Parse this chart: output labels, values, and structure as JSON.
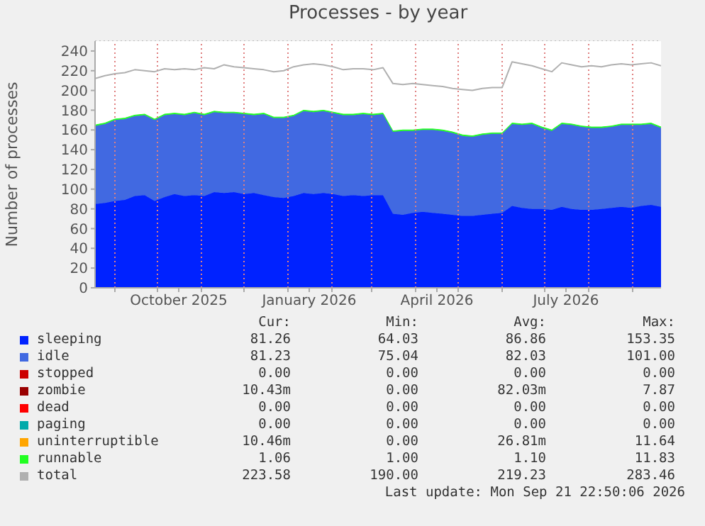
{
  "chart_data": {
    "type": "area",
    "title": "Processes - by year",
    "ylabel": "Number of processes",
    "stacked": true,
    "grid": true,
    "legend": "bottom",
    "x": [
      "2025-08-18",
      "2025-08-25",
      "2025-09-01",
      "2025-09-08",
      "2025-09-15",
      "2025-09-22",
      "2025-09-29",
      "2025-10-06",
      "2025-10-13",
      "2025-10-20",
      "2025-10-27",
      "2025-11-03",
      "2025-11-10",
      "2025-11-17",
      "2025-11-24",
      "2025-12-01",
      "2025-12-08",
      "2025-12-15",
      "2025-12-22",
      "2025-12-29",
      "2026-01-05",
      "2026-01-12",
      "2026-01-19",
      "2026-01-26",
      "2026-02-02",
      "2026-02-09",
      "2026-02-16",
      "2026-02-23",
      "2026-03-02",
      "2026-03-09",
      "2026-03-16",
      "2026-03-23",
      "2026-03-30",
      "2026-04-06",
      "2026-04-13",
      "2026-04-20",
      "2026-04-27",
      "2026-05-04",
      "2026-05-11",
      "2026-05-18",
      "2026-05-25",
      "2026-06-01",
      "2026-06-08",
      "2026-06-15",
      "2026-06-22",
      "2026-06-29",
      "2026-07-06",
      "2026-07-13",
      "2026-07-20",
      "2026-07-27",
      "2026-08-03",
      "2026-08-10",
      "2026-08-17",
      "2026-08-24",
      "2026-08-31",
      "2026-09-07",
      "2026-09-14",
      "2026-09-21"
    ],
    "xlim": [
      "2025-08-18",
      "2026-09-21"
    ],
    "xticks": [
      {
        "value": "2025-09-01",
        "label": null
      },
      {
        "value": "2025-10-01",
        "label": null
      },
      {
        "value": "2025-10-16",
        "label": "October 2025"
      },
      {
        "value": "2025-11-01",
        "label": null
      },
      {
        "value": "2025-12-01",
        "label": null
      },
      {
        "value": "2026-01-01",
        "label": null
      },
      {
        "value": "2026-01-16",
        "label": "January 2026"
      },
      {
        "value": "2026-02-01",
        "label": null
      },
      {
        "value": "2026-03-01",
        "label": null
      },
      {
        "value": "2026-04-01",
        "label": null
      },
      {
        "value": "2026-04-16",
        "label": "April 2026"
      },
      {
        "value": "2026-05-01",
        "label": null
      },
      {
        "value": "2026-06-01",
        "label": null
      },
      {
        "value": "2026-07-01",
        "label": null
      },
      {
        "value": "2026-07-16",
        "label": "July 2026"
      },
      {
        "value": "2026-08-01",
        "label": null
      },
      {
        "value": "2026-09-01",
        "label": null
      }
    ],
    "ylim": [
      0,
      250
    ],
    "yticks": [
      0,
      20,
      40,
      60,
      80,
      100,
      120,
      140,
      160,
      180,
      200,
      220,
      240
    ],
    "series": [
      {
        "name": "sleeping",
        "color": "#0022ff",
        "values": [
          85,
          86,
          88,
          89,
          93,
          94,
          88,
          92,
          95,
          93,
          94,
          93,
          97,
          96,
          97,
          95,
          96,
          94,
          92,
          91,
          93,
          96,
          95,
          96,
          95,
          93,
          94,
          93,
          94,
          94,
          75,
          74,
          76,
          77,
          76,
          75,
          74,
          73,
          73,
          74,
          75,
          76,
          83,
          81,
          80,
          80,
          79,
          82,
          80,
          79,
          79,
          80,
          81,
          82,
          81,
          83,
          84,
          82
        ]
      },
      {
        "name": "idle",
        "color": "#4169e1",
        "values": [
          79,
          80,
          82,
          82,
          81,
          81,
          82,
          83,
          81,
          82,
          83,
          82,
          81,
          81,
          80,
          81,
          79,
          82,
          80,
          81,
          81,
          83,
          83,
          83,
          82,
          82,
          81,
          83,
          81,
          82,
          83,
          85,
          83,
          83,
          84,
          84,
          83,
          81,
          80,
          81,
          81,
          80,
          83,
          84,
          86,
          82,
          80,
          84,
          85,
          84,
          83,
          82,
          82,
          83,
          84,
          82,
          82,
          80
        ]
      },
      {
        "name": "stopped",
        "color": "#cc0000",
        "values": [
          null,
          null,
          null,
          null,
          null,
          null,
          null,
          null,
          null,
          null,
          null,
          null,
          null,
          null,
          null,
          null,
          null,
          null,
          null,
          null,
          null,
          null,
          null,
          null,
          null,
          null,
          null,
          null,
          null,
          null,
          null,
          null,
          null,
          null,
          null,
          null,
          null,
          null,
          null,
          null,
          null,
          null,
          null,
          null,
          null,
          null,
          null,
          null,
          null,
          null,
          null,
          null,
          null,
          null,
          null,
          null,
          null,
          null
        ]
      },
      {
        "name": "zombie",
        "color": "#990000",
        "values": [
          null,
          null,
          null,
          null,
          null,
          null,
          null,
          null,
          null,
          null,
          null,
          null,
          null,
          null,
          null,
          null,
          null,
          null,
          null,
          null,
          null,
          null,
          null,
          null,
          null,
          null,
          null,
          null,
          null,
          null,
          null,
          null,
          null,
          null,
          null,
          null,
          null,
          null,
          null,
          null,
          null,
          null,
          null,
          null,
          null,
          null,
          null,
          null,
          null,
          null,
          null,
          null,
          null,
          null,
          null,
          null,
          null,
          null
        ]
      },
      {
        "name": "dead",
        "color": "#ff0000",
        "values": [
          null,
          null,
          null,
          null,
          null,
          null,
          null,
          null,
          null,
          null,
          null,
          null,
          null,
          null,
          null,
          null,
          null,
          null,
          null,
          null,
          null,
          null,
          null,
          null,
          null,
          null,
          null,
          null,
          null,
          null,
          null,
          null,
          null,
          null,
          null,
          null,
          null,
          null,
          null,
          null,
          null,
          null,
          null,
          null,
          null,
          null,
          null,
          null,
          null,
          null,
          null,
          null,
          null,
          null,
          null,
          null,
          null,
          null
        ]
      },
      {
        "name": "paging",
        "color": "#00aaaa",
        "values": [
          null,
          null,
          null,
          null,
          null,
          null,
          null,
          null,
          null,
          null,
          null,
          null,
          null,
          null,
          null,
          null,
          null,
          null,
          null,
          null,
          null,
          null,
          null,
          null,
          null,
          null,
          null,
          null,
          null,
          null,
          null,
          null,
          null,
          null,
          null,
          null,
          null,
          null,
          null,
          null,
          null,
          null,
          null,
          null,
          null,
          null,
          null,
          null,
          null,
          null,
          null,
          null,
          null,
          null,
          null,
          null,
          null,
          null
        ]
      },
      {
        "name": "uninterruptible",
        "color": "#ffa500",
        "values": [
          null,
          null,
          null,
          null,
          null,
          null,
          null,
          null,
          null,
          null,
          null,
          null,
          null,
          null,
          null,
          null,
          null,
          null,
          null,
          null,
          null,
          null,
          null,
          null,
          null,
          null,
          null,
          null,
          null,
          null,
          null,
          null,
          null,
          null,
          null,
          null,
          null,
          null,
          null,
          null,
          null,
          null,
          null,
          null,
          null,
          null,
          null,
          null,
          null,
          null,
          null,
          null,
          null,
          null,
          null,
          null,
          null,
          null
        ]
      },
      {
        "name": "runnable",
        "color": "#22ff22",
        "values": [
          1,
          1,
          1,
          1,
          1,
          1,
          1,
          1,
          1,
          1,
          1,
          1,
          1,
          1,
          1,
          1,
          1,
          1,
          1,
          1,
          1,
          1,
          1,
          1,
          1,
          1,
          1,
          1,
          1,
          1,
          1,
          1,
          1,
          1,
          1,
          1,
          1,
          1,
          1,
          1,
          1,
          1,
          1,
          1,
          1,
          1,
          1,
          1,
          1,
          1,
          1,
          1,
          1,
          1,
          1,
          1,
          1,
          1
        ]
      },
      {
        "name": "total",
        "type": "line",
        "color": "#b0b0b0",
        "values": [
          212,
          215,
          217,
          218,
          221,
          220,
          219,
          222,
          221,
          222,
          221,
          223,
          222,
          226,
          224,
          223,
          222,
          221,
          219,
          220,
          224,
          226,
          227,
          226,
          224,
          221,
          222,
          222,
          221,
          223,
          207,
          206,
          207,
          206,
          205,
          204,
          202,
          201,
          200,
          202,
          203,
          203,
          229,
          227,
          225,
          222,
          219,
          228,
          226,
          224,
          225,
          224,
          226,
          227,
          226,
          227,
          228,
          225
        ]
      }
    ],
    "annotations": [
      "Cur:",
      "Min:",
      "Avg:",
      "Max:",
      "81.26",
      "64.03",
      "86.86",
      "153.35",
      "81.23",
      "75.04",
      "82.03",
      "101.00",
      "0.00",
      "0.00",
      "0.00",
      "0.00",
      "10.43m",
      "0.00",
      "82.03m",
      "7.87",
      "0.00",
      "0.00",
      "0.00",
      "0.00",
      "0.00",
      "0.00",
      "0.00",
      "0.00",
      "10.46m",
      "0.00",
      "26.81m",
      "11.64",
      "1.06",
      "1.00",
      "1.10",
      "11.83",
      "223.58",
      "190.00",
      "219.23",
      "283.46",
      "Last update: Mon Sep 21 22:50:06 2026"
    ]
  }
}
